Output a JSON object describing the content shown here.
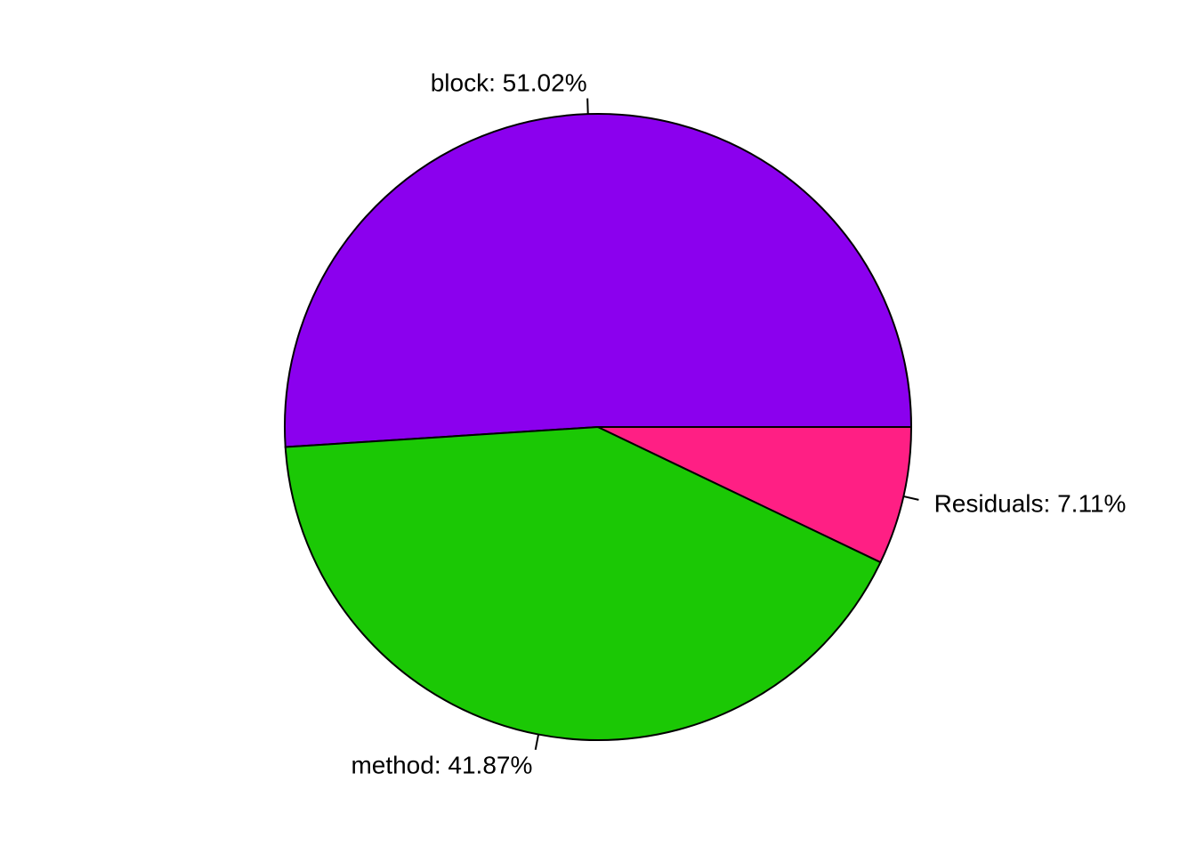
{
  "chart_data": {
    "type": "pie",
    "title": "",
    "start": "counterclockwise from 3 o'clock",
    "slices": [
      {
        "label": "block",
        "value": 51.02,
        "label_text": "block: 51.02%",
        "color": "#8B00EE"
      },
      {
        "label": "method",
        "value": 41.87,
        "label_text": "method: 41.87%",
        "color": "#1BC805"
      },
      {
        "label": "Residuals",
        "value": 7.11,
        "label_text": "Residuals: 7.11%",
        "color": "#FF1F84"
      }
    ]
  }
}
